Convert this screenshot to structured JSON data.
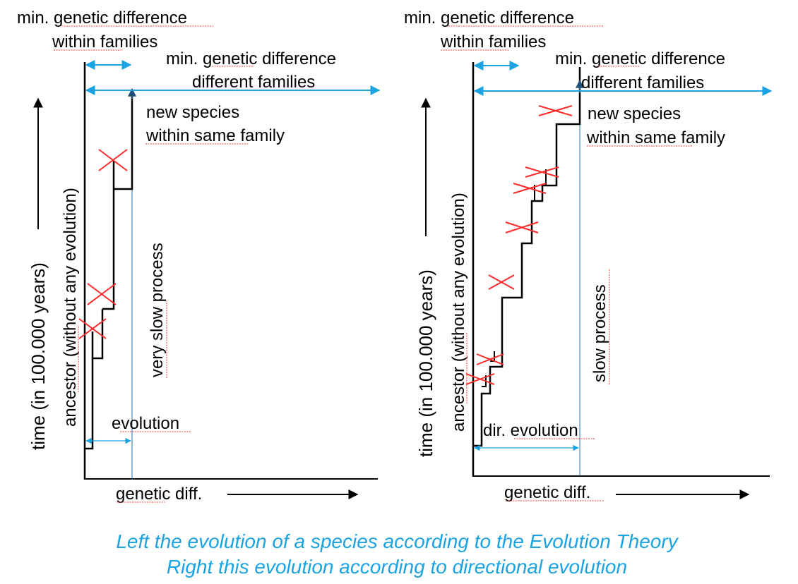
{
  "colors": {
    "accent": "#1aa3e0",
    "cross": "#ff2a2a",
    "line": "#000000",
    "thin_line": "#2b6f98"
  },
  "left_panel": {
    "min_within_l1": "min. genetic difference",
    "min_within_l2": "within families",
    "min_diff_l1": "min. genetic difference",
    "min_diff_l2": "different families",
    "new_species_l1": "new species",
    "new_species_l2": "within same family",
    "y_axis": "time (in 100.000 years)",
    "ancestor": "ancestor (without any evolution)",
    "process": "very slow process",
    "evolution": "evolution",
    "x_axis": "genetic diff."
  },
  "right_panel": {
    "min_within_l1": "min. genetic difference",
    "min_within_l2": "within families",
    "min_diff_l1": "min. genetic difference",
    "min_diff_l2": "different families",
    "new_species_l1": "new species",
    "new_species_l2": "within same family",
    "y_axis": "time (in 100.000 years)",
    "ancestor": "ancestor (without any evolution)",
    "process": "slow process",
    "evolution": "dir. evolution",
    "x_axis": "genetic diff."
  },
  "caption": {
    "line1": "Left the evolution of a species according to the Evolution Theory",
    "line2": "Right this evolution according to directional evolution"
  }
}
